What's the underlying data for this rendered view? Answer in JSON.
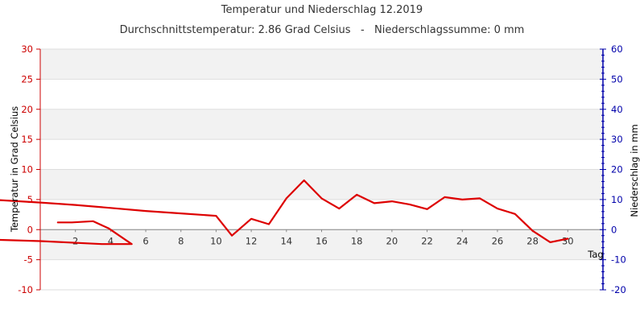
{
  "chart_data": {
    "type": "line",
    "title": "Temperatur und Niederschlag 12.2019",
    "subtitle": "Durchschnittstemperatur: 2.86 Grad Celsius   -   Niederschlagssumme: 0 mm",
    "xlabel": "Tag",
    "ylabel_left": "Temperatur in Grad Celsius",
    "ylabel_right": "Niederschlag in mm",
    "x_ticks": [
      "2",
      "4",
      "6",
      "8",
      "10",
      "12",
      "14",
      "16",
      "18",
      "20",
      "22",
      "24",
      "26",
      "28",
      "30"
    ],
    "y_left_ticks": [
      "-10",
      "-5",
      "0",
      "5",
      "10",
      "15",
      "20",
      "25",
      "30"
    ],
    "y_right_ticks": [
      "-20",
      "-10",
      "0",
      "10",
      "20",
      "30",
      "40",
      "50",
      "60"
    ],
    "ylim_left": [
      -10,
      30
    ],
    "ylim_right": [
      -20,
      60
    ],
    "xlim": [
      0,
      32
    ],
    "grid": "horizontal-bands",
    "colors": {
      "temperature": "#dd0000",
      "left_axis": "#cc0000",
      "right_axis": "#0000aa",
      "band": "#f2f2f2",
      "gridline": "#dddddd"
    },
    "series": [
      {
        "x": [
          -2.3,
          0,
          2,
          4,
          6,
          8,
          10,
          10.9,
          12,
          13,
          14,
          15,
          16,
          17,
          18,
          19,
          20,
          21,
          22,
          23,
          24,
          25,
          26,
          27,
          28,
          29,
          30
        ],
        "values": [
          4.9,
          4.5,
          4.1,
          3.6,
          3.1,
          2.7,
          2.3,
          -1.0,
          1.8,
          0.9,
          5.2,
          8.2,
          5.2,
          3.5,
          5.8,
          4.4,
          4.7,
          4.2,
          3.4,
          5.4,
          5.0,
          5.2,
          3.5,
          2.6,
          -0.2,
          -2.1,
          -1.5
        ]
      },
      {
        "x": [
          1,
          1.8,
          3.0,
          3.9,
          4.9,
          5.2,
          3.5,
          0,
          -2.3
        ],
        "values": [
          1.2,
          1.2,
          1.4,
          0.2,
          -1.8,
          -2.4,
          -2.4,
          -1.9,
          -1.7
        ]
      }
    ]
  }
}
